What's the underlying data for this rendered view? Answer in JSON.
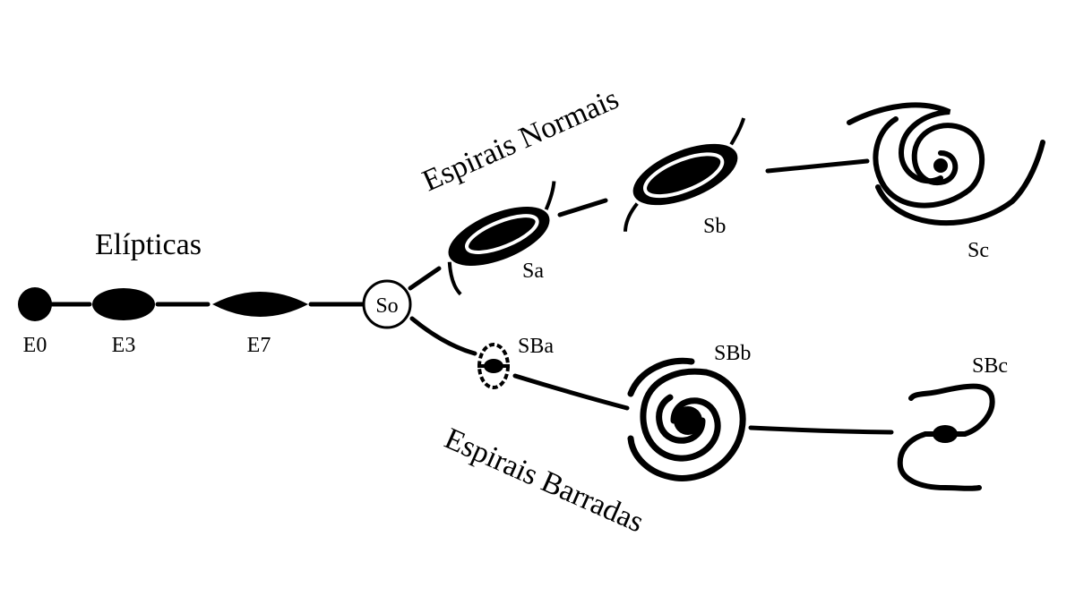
{
  "labels": {
    "elliptical_group": "Elípticas",
    "normal_spirals": "Espirais Normais",
    "barred_spirals": "Espirais Barradas",
    "lenticular": "So"
  },
  "classes": {
    "E0": "E0",
    "E3": "E3",
    "E7": "E7",
    "Sa": "Sa",
    "Sb": "Sb",
    "Sc": "Sc",
    "SBa": "SBa",
    "SBb": "SBb",
    "SBc": "SBc"
  },
  "colors": {
    "ink": "#000000",
    "paper": "#ffffff"
  }
}
